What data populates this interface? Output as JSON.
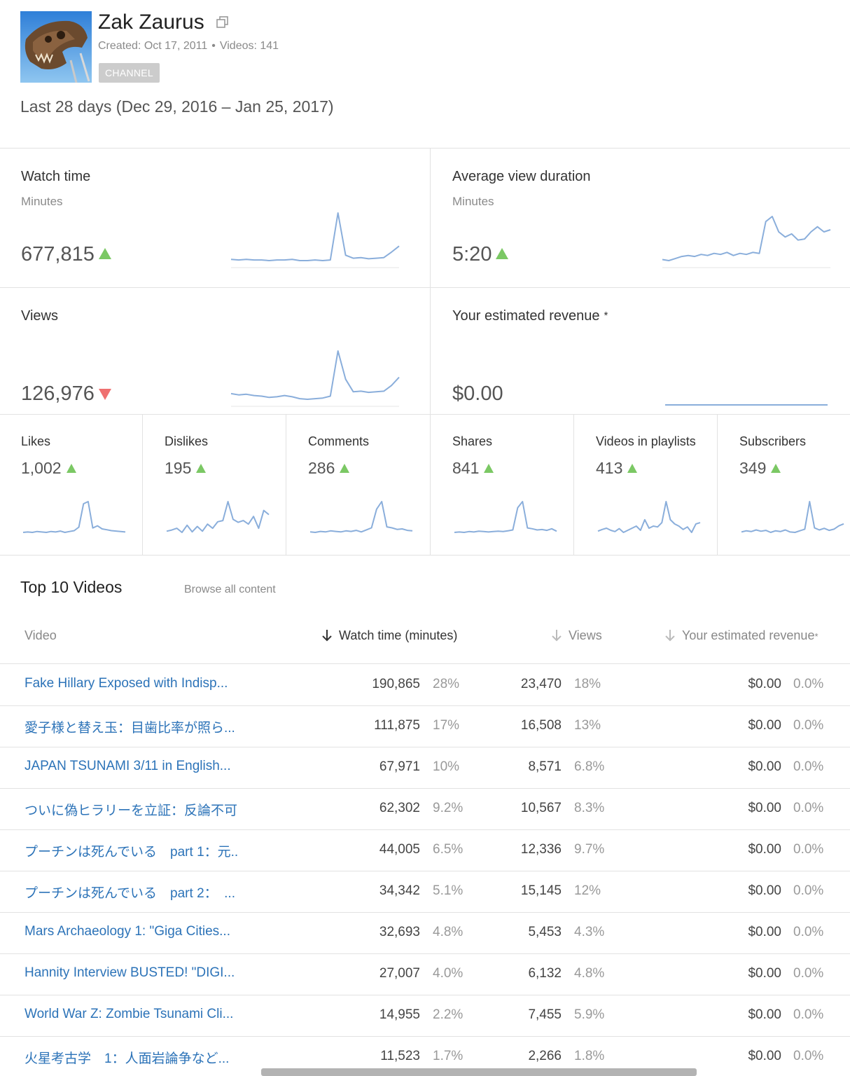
{
  "channel": {
    "name": "Zak Zaurus",
    "created": "Created: Oct 17, 2011",
    "videos": "Videos: 141",
    "separator": "•",
    "badge": "CHANNEL"
  },
  "date_range": "Last 28 days (Dec 29, 2016 – Jan 25, 2017)",
  "metrics": {
    "watch_time": {
      "label": "Watch time",
      "sub": "Minutes",
      "value": "677,815",
      "trend": "up"
    },
    "avg_view_duration": {
      "label": "Average view duration",
      "sub": "Minutes",
      "value": "5:20",
      "trend": "up"
    },
    "views": {
      "label": "Views",
      "value": "126,976",
      "trend": "down"
    },
    "revenue": {
      "label": "Your estimated revenue",
      "asterisk": "*",
      "value": "$0.00"
    }
  },
  "engagement": [
    {
      "label": "Likes",
      "value": "1,002",
      "trend": "up"
    },
    {
      "label": "Dislikes",
      "value": "195",
      "trend": "up"
    },
    {
      "label": "Comments",
      "value": "286",
      "trend": "up"
    },
    {
      "label": "Shares",
      "value": "841",
      "trend": "up"
    },
    {
      "label": "Videos in playlists",
      "value": "413",
      "trend": "up"
    },
    {
      "label": "Subscribers",
      "value": "349",
      "trend": "up"
    }
  ],
  "sparklines": {
    "watch_time": [
      18,
      17,
      18,
      17,
      17,
      16,
      17,
      17,
      18,
      16,
      16,
      17,
      16,
      17,
      95,
      25,
      20,
      21,
      19,
      20,
      21,
      30,
      40
    ],
    "avg_view_duration": [
      58,
      57,
      59,
      61,
      62,
      61,
      63,
      62,
      64,
      63,
      65,
      62,
      64,
      63,
      65,
      64,
      95,
      100,
      85,
      80,
      83,
      77,
      78,
      85,
      90,
      85,
      87
    ],
    "views": [
      32,
      30,
      31,
      29,
      28,
      26,
      27,
      29,
      27,
      24,
      23,
      24,
      25,
      28,
      100,
      55,
      35,
      36,
      34,
      35,
      36,
      45,
      58
    ],
    "revenue": [
      0,
      0,
      0,
      0,
      0,
      0,
      0,
      0,
      0,
      0
    ],
    "likes": [
      10,
      11,
      10,
      12,
      11,
      10,
      12,
      11,
      13,
      10,
      12,
      14,
      22,
      75,
      80,
      20,
      25,
      18,
      16,
      14,
      13,
      12,
      11
    ],
    "dislikes": [
      10,
      12,
      15,
      8,
      20,
      9,
      18,
      10,
      22,
      15,
      26,
      28,
      60,
      30,
      25,
      28,
      22,
      35,
      15,
      45,
      38
    ],
    "comments": [
      10,
      9,
      11,
      10,
      12,
      11,
      10,
      12,
      11,
      13,
      10,
      14,
      18,
      55,
      70,
      20,
      18,
      15,
      16,
      13,
      12
    ],
    "shares": [
      9,
      10,
      9,
      11,
      10,
      12,
      11,
      10,
      11,
      12,
      11,
      13,
      15,
      70,
      85,
      20,
      18,
      15,
      16,
      14,
      18,
      12
    ],
    "playlists": [
      18,
      22,
      25,
      20,
      17,
      24,
      15,
      20,
      25,
      30,
      20,
      45,
      25,
      30,
      28,
      38,
      88,
      45,
      35,
      30,
      22,
      28,
      15,
      35,
      38
    ],
    "subscribers": [
      15,
      18,
      16,
      20,
      17,
      19,
      14,
      18,
      16,
      20,
      15,
      14,
      18,
      22,
      90,
      25,
      20,
      24,
      19,
      22,
      30,
      35
    ]
  },
  "top_videos": {
    "title": "Top 10 Videos",
    "browse_label": "Browse all content",
    "columns": {
      "video": "Video",
      "watch_time": "Watch time (minutes)",
      "views": "Views",
      "revenue": "Your estimated revenue",
      "revenue_asterisk": "*"
    },
    "rows": [
      {
        "title": "Fake Hillary Exposed with Indisp...",
        "watch": "190,865",
        "watch_pct": "28%",
        "views": "23,470",
        "views_pct": "18%",
        "revenue": "$0.00",
        "revenue_pct": "0.0%"
      },
      {
        "title": "愛子様と替え玉：目歯比率が照ら...",
        "watch": "111,875",
        "watch_pct": "17%",
        "views": "16,508",
        "views_pct": "13%",
        "revenue": "$0.00",
        "revenue_pct": "0.0%"
      },
      {
        "title": "JAPAN TSUNAMI 3/11 in English...",
        "watch": "67,971",
        "watch_pct": "10%",
        "views": "8,571",
        "views_pct": "6.8%",
        "revenue": "$0.00",
        "revenue_pct": "0.0%"
      },
      {
        "title": "ついに偽ヒラリーを立証：反論不可...",
        "watch": "62,302",
        "watch_pct": "9.2%",
        "views": "10,567",
        "views_pct": "8.3%",
        "revenue": "$0.00",
        "revenue_pct": "0.0%"
      },
      {
        "title": "プーチンは死んでいる　part 1：元...",
        "watch": "44,005",
        "watch_pct": "6.5%",
        "views": "12,336",
        "views_pct": "9.7%",
        "revenue": "$0.00",
        "revenue_pct": "0.0%"
      },
      {
        "title": "プーチンは死んでいる　part 2：　...",
        "watch": "34,342",
        "watch_pct": "5.1%",
        "views": "15,145",
        "views_pct": "12%",
        "revenue": "$0.00",
        "revenue_pct": "0.0%"
      },
      {
        "title": "Mars Archaeology 1: \"Giga Cities...",
        "watch": "32,693",
        "watch_pct": "4.8%",
        "views": "5,453",
        "views_pct": "4.3%",
        "revenue": "$0.00",
        "revenue_pct": "0.0%"
      },
      {
        "title": "Hannity Interview BUSTED! \"DIGI...",
        "watch": "27,007",
        "watch_pct": "4.0%",
        "views": "6,132",
        "views_pct": "4.8%",
        "revenue": "$0.00",
        "revenue_pct": "0.0%"
      },
      {
        "title": "World War Z: Zombie Tsunami Cli...",
        "watch": "14,955",
        "watch_pct": "2.2%",
        "views": "7,455",
        "views_pct": "5.9%",
        "revenue": "$0.00",
        "revenue_pct": "0.0%"
      },
      {
        "title": "火星考古学　1：人面岩論争など...",
        "watch": "11,523",
        "watch_pct": "1.7%",
        "views": "2,266",
        "views_pct": "1.8%",
        "revenue": "$0.00",
        "revenue_pct": "0.0%"
      }
    ]
  },
  "colors": {
    "sparkline": "#8aaedb",
    "trend_up": "#7bc864",
    "trend_down": "#ef7070",
    "link": "#2c73b8",
    "badge_bg": "#cccccc"
  }
}
